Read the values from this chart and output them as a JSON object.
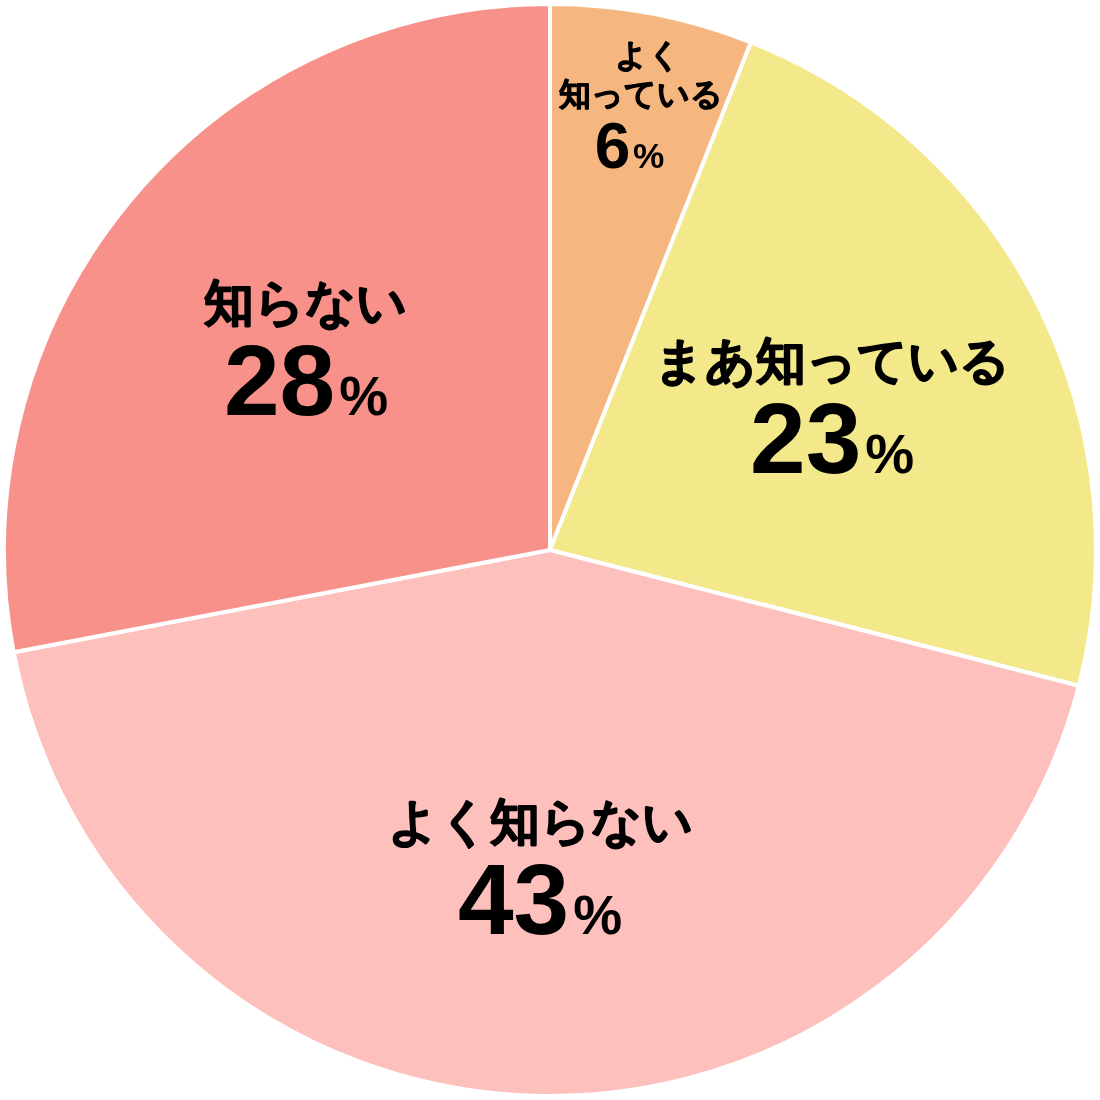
{
  "chart_data": {
    "type": "pie",
    "categories": [
      "よく知っている",
      "まあ知っている",
      "よく知らない",
      "知らない"
    ],
    "values": [
      6,
      23,
      43,
      28
    ],
    "value_labels": [
      "6%",
      "23%",
      "43%",
      "28%"
    ],
    "colors": [
      "#f5b77f",
      "#f3e88a",
      "#fdc0bd",
      "#f7918a"
    ]
  }
}
